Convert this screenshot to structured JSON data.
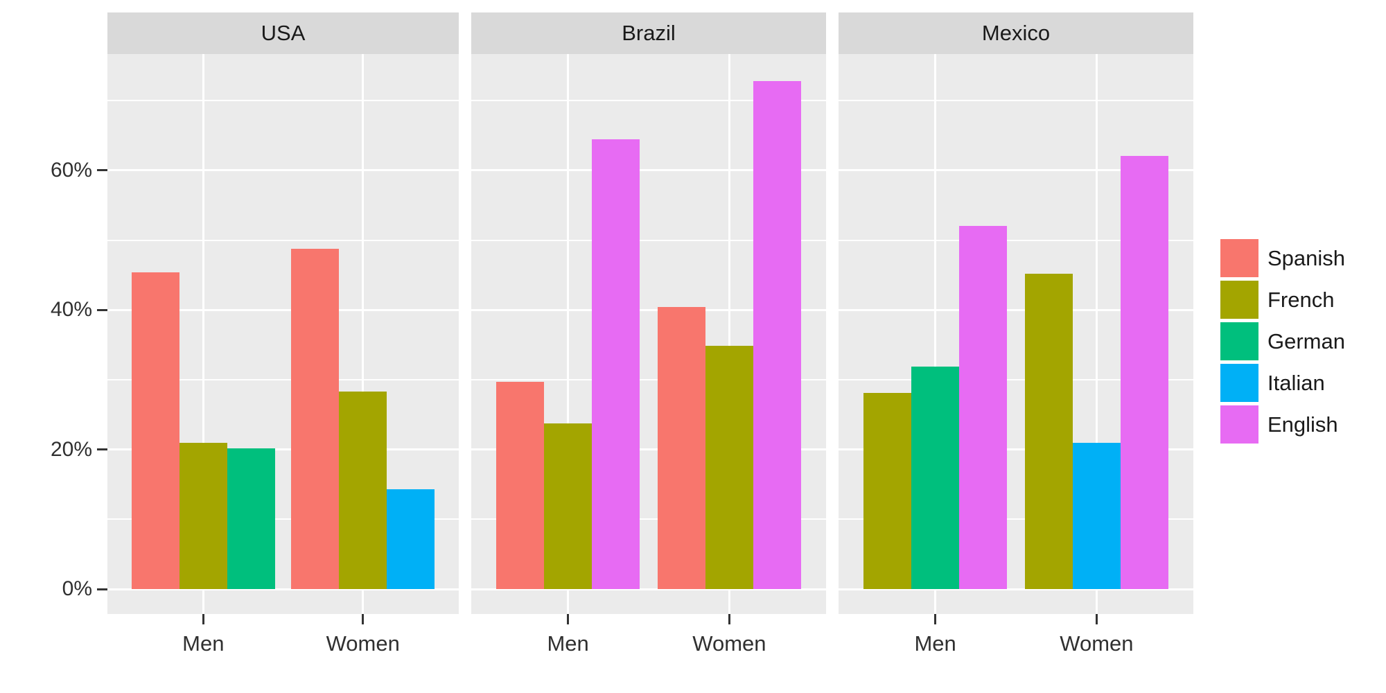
{
  "chart_data": {
    "type": "bar",
    "title": "",
    "xlabel": "",
    "ylabel": "",
    "x_categories": [
      "Men",
      "Women"
    ],
    "y_axis": {
      "tick_labels": [
        "0%",
        "20%",
        "40%",
        "60%"
      ],
      "tick_values": [
        0,
        20,
        40,
        60
      ],
      "minor_values": [
        10,
        30,
        50,
        70
      ],
      "ylim": [
        -3.6,
        76.7
      ],
      "grid": "white major and minor gridlines on grey panel"
    },
    "legend": {
      "position": "right",
      "entries": [
        {
          "label": "Spanish",
          "color": "#F8766D"
        },
        {
          "label": "French",
          "color": "#A3A500"
        },
        {
          "label": "German",
          "color": "#00BF7D"
        },
        {
          "label": "Italian",
          "color": "#00B0F6"
        },
        {
          "label": "English",
          "color": "#E76BF3"
        }
      ]
    },
    "facets": [
      {
        "label": "USA",
        "groups": [
          {
            "category": "Men",
            "bars": [
              {
                "language": "Spanish",
                "value": 45.4
              },
              {
                "language": "French",
                "value": 21.0
              },
              {
                "language": "German",
                "value": 20.2
              }
            ]
          },
          {
            "category": "Women",
            "bars": [
              {
                "language": "Spanish",
                "value": 48.8
              },
              {
                "language": "French",
                "value": 28.3
              },
              {
                "language": "Italian",
                "value": 14.3
              }
            ]
          }
        ]
      },
      {
        "label": "Brazil",
        "groups": [
          {
            "category": "Men",
            "bars": [
              {
                "language": "Spanish",
                "value": 29.7
              },
              {
                "language": "French",
                "value": 23.7
              },
              {
                "language": "English",
                "value": 64.5
              }
            ]
          },
          {
            "category": "Women",
            "bars": [
              {
                "language": "Spanish",
                "value": 40.4
              },
              {
                "language": "French",
                "value": 34.9
              },
              {
                "language": "English",
                "value": 72.8
              }
            ]
          }
        ]
      },
      {
        "label": "Mexico",
        "groups": [
          {
            "category": "Men",
            "bars": [
              {
                "language": "French",
                "value": 28.1
              },
              {
                "language": "German",
                "value": 31.9
              },
              {
                "language": "English",
                "value": 52.0
              }
            ]
          },
          {
            "category": "Women",
            "bars": [
              {
                "language": "French",
                "value": 45.2
              },
              {
                "language": "Italian",
                "value": 21.0
              },
              {
                "language": "English",
                "value": 62.1
              }
            ]
          }
        ]
      }
    ],
    "colors": {
      "panel_background": "#EBEBEB",
      "strip_background": "#D9D9D9",
      "gridline": "#FFFFFF",
      "tick_mark": "#333333",
      "axis_text": "#303030",
      "strip_text": "#1a1a1a",
      "figure_background": "#FFFFFF"
    }
  }
}
